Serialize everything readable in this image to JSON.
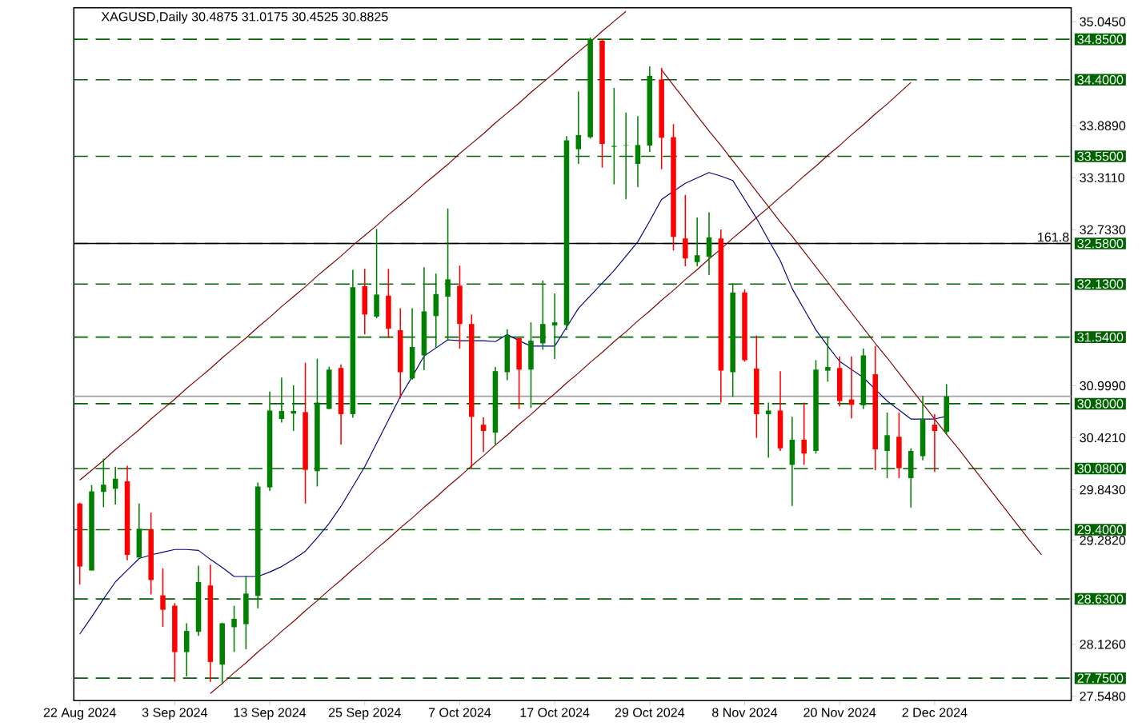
{
  "chart_data": {
    "type": "candlestick",
    "title": "XAGUSD,Daily  30.4875 31.0175 30.4525 30.8825",
    "categories": [
      "22 Aug 2024",
      null,
      null,
      null,
      null,
      null,
      null,
      null,
      "3 Sep 2024",
      null,
      null,
      null,
      null,
      null,
      null,
      null,
      "13 Sep 2024",
      null,
      null,
      null,
      null,
      null,
      null,
      null,
      "25 Sep 2024",
      null,
      null,
      null,
      null,
      null,
      null,
      null,
      "7 Oct 2024",
      null,
      null,
      null,
      null,
      null,
      null,
      null,
      "17 Oct 2024",
      null,
      null,
      null,
      null,
      null,
      null,
      null,
      "29 Oct 2024",
      null,
      null,
      null,
      null,
      null,
      null,
      null,
      "8 Nov 2024",
      null,
      null,
      null,
      null,
      null,
      null,
      null,
      "20 Nov 2024",
      null,
      null,
      null,
      null,
      null,
      null,
      null,
      "2 Dec 2024",
      null,
      null,
      null,
      null,
      null,
      null,
      null,
      null,
      null,
      null,
      null
    ],
    "ohlc": [
      [
        29.69,
        29.7,
        28.79,
        28.99
      ],
      [
        28.946,
        29.896,
        28.946,
        29.826
      ],
      [
        29.82,
        30.19,
        29.65,
        29.9
      ],
      [
        29.855,
        30.1,
        29.68,
        29.966
      ],
      [
        29.937,
        30.11,
        29.06,
        29.12
      ],
      [
        29.09,
        29.69,
        29.09,
        29.41
      ],
      [
        29.4,
        29.59,
        28.68,
        28.84
      ],
      [
        28.67,
        28.97,
        28.32,
        28.51
      ],
      [
        28.555,
        28.585,
        27.71,
        28.04
      ],
      [
        28.04,
        28.36,
        27.77,
        28.275
      ],
      [
        28.265,
        29.0,
        28.22,
        28.818
      ],
      [
        28.78,
        29.01,
        27.71,
        27.93
      ],
      [
        27.9,
        28.365,
        27.68,
        28.36
      ],
      [
        28.316,
        28.555,
        28.04,
        28.41
      ],
      [
        28.35,
        28.89,
        28.07,
        28.69
      ],
      [
        28.665,
        29.925,
        28.526,
        29.88
      ],
      [
        29.87,
        30.935,
        29.83,
        30.724
      ],
      [
        30.63,
        31.09,
        30.59,
        30.72
      ],
      [
        30.69,
        31.004,
        30.497,
        30.72
      ],
      [
        30.707,
        31.255,
        29.69,
        30.065
      ],
      [
        30.05,
        31.3,
        29.88,
        30.812
      ],
      [
        30.742,
        31.21,
        30.74,
        31.179
      ],
      [
        31.197,
        31.237,
        30.345,
        30.683
      ],
      [
        30.683,
        32.287,
        30.643,
        32.095
      ],
      [
        32.106,
        32.299,
        31.57,
        31.791
      ],
      [
        31.768,
        32.742,
        31.75,
        32.013
      ],
      [
        32.001,
        32.299,
        31.529,
        31.634
      ],
      [
        31.616,
        31.861,
        30.858,
        31.15
      ],
      [
        31.08,
        31.861,
        31.068,
        31.43
      ],
      [
        31.337,
        32.316,
        31.173,
        31.826
      ],
      [
        31.774,
        32.246,
        31.424,
        32.019
      ],
      [
        31.99,
        32.969,
        31.511,
        32.182
      ],
      [
        32.112,
        32.334,
        31.412,
        31.686
      ],
      [
        31.686,
        31.791,
        30.083,
        30.654
      ],
      [
        30.567,
        30.648,
        30.264,
        30.497
      ],
      [
        30.479,
        31.208,
        30.345,
        31.162
      ],
      [
        31.15,
        31.628,
        31.062,
        31.558
      ],
      [
        31.529,
        31.529,
        30.742,
        31.179
      ],
      [
        31.179,
        31.704,
        30.753,
        31.5
      ],
      [
        31.471,
        32.17,
        31.4,
        31.686
      ],
      [
        31.669,
        32.025,
        31.296,
        31.704
      ],
      [
        31.675,
        33.774,
        31.616,
        33.727
      ],
      [
        33.628,
        34.27,
        33.465,
        33.786
      ],
      [
        33.762,
        34.87,
        33.745,
        34.853
      ],
      [
        34.835,
        34.85,
        33.424,
        33.686
      ],
      [
        33.655,
        34.31,
        33.237,
        33.665
      ],
      [
        33.67,
        34.036,
        33.074,
        33.675
      ],
      [
        33.465,
        33.995,
        33.208,
        33.675
      ],
      [
        33.669,
        34.549,
        33.599,
        34.444
      ],
      [
        34.404,
        34.532,
        33.406,
        33.756
      ],
      [
        33.762,
        33.908,
        32.503,
        32.654
      ],
      [
        32.637,
        33.121,
        32.328,
        32.415
      ],
      [
        32.374,
        32.87,
        32.328,
        32.45
      ],
      [
        32.433,
        32.928,
        32.229,
        32.649
      ],
      [
        32.637,
        32.736,
        30.812,
        31.167
      ],
      [
        31.15,
        32.141,
        30.876,
        32.036
      ],
      [
        32.036,
        32.071,
        31.267,
        31.284
      ],
      [
        31.191,
        31.558,
        30.421,
        30.683
      ],
      [
        30.683,
        30.812,
        30.199,
        30.724
      ],
      [
        30.724,
        31.162,
        30.275,
        30.304
      ],
      [
        30.12,
        30.654,
        29.663,
        30.4
      ],
      [
        30.4,
        30.812,
        30.12,
        30.246
      ],
      [
        30.275,
        31.284,
        30.246,
        31.179
      ],
      [
        31.167,
        31.541,
        31.045,
        31.208
      ],
      [
        31.197,
        31.325,
        30.771,
        30.829
      ],
      [
        30.847,
        31.325,
        30.637,
        30.788
      ],
      [
        30.783,
        31.412,
        30.742,
        31.337
      ],
      [
        31.127,
        31.441,
        30.06,
        30.293
      ],
      [
        30.275,
        30.701,
        29.972,
        30.45
      ],
      [
        30.433,
        30.701,
        29.972,
        30.083
      ],
      [
        29.972,
        30.304,
        29.646,
        30.275
      ],
      [
        30.217,
        30.887,
        30.17,
        30.625
      ],
      [
        30.567,
        30.683,
        30.042,
        30.497
      ],
      [
        30.4875,
        31.0175,
        30.4525,
        30.8825
      ],
      null,
      null,
      null,
      null,
      null,
      null,
      null,
      null,
      null,
      null
    ],
    "colors": [
      "#ff0000",
      "#008000",
      "#008000",
      "#008000",
      "#ff0000",
      "#008000",
      "#ff0000",
      "#ff0000",
      "#ff0000",
      "#008000",
      "#008000",
      "#ff0000",
      "#008000",
      "#008000",
      "#008000",
      "#008000",
      "#008000",
      "#008000",
      "#008000",
      "#ff0000",
      "#008000",
      "#008000",
      "#ff0000",
      "#008000",
      "#ff0000",
      "#008000",
      "#ff0000",
      "#ff0000",
      "#008000",
      "#008000",
      "#008000",
      "#008000",
      "#ff0000",
      "#ff0000",
      "#ff0000",
      "#008000",
      "#008000",
      "#ff0000",
      "#008000",
      "#008000",
      "#008000",
      "#008000",
      "#008000",
      "#008000",
      "#ff0000",
      "#008000",
      "#008000",
      "#008000",
      "#008000",
      "#ff0000",
      "#ff0000",
      "#ff0000",
      "#008000",
      "#008000",
      "#ff0000",
      "#008000",
      "#ff0000",
      "#ff0000",
      "#008000",
      "#ff0000",
      "#008000",
      "#ff0000",
      "#008000",
      "#008000",
      "#ff0000",
      "#ff0000",
      "#008000",
      "#ff0000",
      "#008000",
      "#ff0000",
      "#008000",
      "#008000",
      "#ff0000",
      "#008000",
      null,
      null,
      null,
      null,
      null,
      null,
      null,
      null,
      null,
      null
    ],
    "series": [
      {
        "type": "line",
        "color": "#000080",
        "values": [
          28.24,
          28.43,
          28.63,
          28.82,
          28.95,
          29.08,
          29.12,
          29.15,
          29.18,
          29.18,
          29.17,
          29.07,
          28.98,
          28.88,
          28.88,
          28.88,
          28.93,
          28.99,
          29.07,
          29.16,
          29.31,
          29.47,
          29.66,
          29.88,
          30.1,
          30.36,
          30.62,
          30.88,
          31.1,
          31.33,
          31.42,
          31.51,
          31.5,
          31.5,
          31.5,
          31.49,
          31.57,
          31.5,
          31.44,
          31.44,
          31.44,
          31.65,
          31.86,
          32.0,
          32.14,
          32.28,
          32.44,
          32.6,
          32.83,
          33.07,
          33.16,
          33.25,
          33.31,
          33.37,
          33.33,
          33.28,
          33.07,
          32.86,
          32.62,
          32.39,
          32.08,
          31.85,
          31.62,
          31.44,
          31.27,
          31.18,
          31.09,
          30.96,
          30.83,
          30.73,
          30.63,
          30.63,
          30.63,
          30.66,
          null,
          null,
          null,
          null,
          null,
          null,
          null,
          null,
          null,
          null
        ]
      },
      {
        "type": "line",
        "color": "#800000",
        "values": [
          29.95,
          30.06,
          30.17,
          30.29,
          30.4,
          30.51,
          30.63,
          30.74,
          30.85,
          30.97,
          31.08,
          31.19,
          31.31,
          31.42,
          31.53,
          31.65,
          31.76,
          31.88,
          31.99,
          32.1,
          32.22,
          32.33,
          32.44,
          32.56,
          32.67,
          32.78,
          32.9,
          33.01,
          33.12,
          33.24,
          33.35,
          33.46,
          33.58,
          33.69,
          33.8,
          33.92,
          34.03,
          34.14,
          34.26,
          34.37,
          34.48,
          34.6,
          34.71,
          34.82,
          34.94,
          35.05,
          35.16,
          null,
          null,
          null,
          null,
          null,
          null,
          null,
          null,
          null,
          null,
          null,
          null,
          null,
          null,
          null,
          null,
          null,
          null,
          null,
          null,
          null,
          null,
          null,
          null,
          null,
          null,
          null,
          null,
          null,
          null,
          null,
          null,
          null,
          null,
          null,
          null,
          null
        ]
      },
      {
        "type": "line",
        "color": "#800000",
        "values": [
          null,
          null,
          null,
          null,
          null,
          null,
          null,
          null,
          null,
          null,
          null,
          27.58,
          27.69,
          27.81,
          27.92,
          28.04,
          28.15,
          28.27,
          28.38,
          28.5,
          28.61,
          28.73,
          28.84,
          28.96,
          29.07,
          29.19,
          29.3,
          29.42,
          29.53,
          29.65,
          29.76,
          29.88,
          29.99,
          30.11,
          30.22,
          30.34,
          30.45,
          30.57,
          30.68,
          30.8,
          30.91,
          31.03,
          31.14,
          31.26,
          31.37,
          31.49,
          31.6,
          31.72,
          31.83,
          31.95,
          32.06,
          32.18,
          32.29,
          32.41,
          32.52,
          32.64,
          32.75,
          32.87,
          32.98,
          33.1,
          33.21,
          33.33,
          33.44,
          33.56,
          33.67,
          33.79,
          33.9,
          34.02,
          34.13,
          34.25,
          34.37,
          null,
          null,
          null,
          null,
          null,
          null,
          null,
          null,
          null,
          null,
          null,
          null,
          null
        ]
      },
      {
        "type": "line",
        "color": "#800000",
        "values": [
          null,
          null,
          null,
          null,
          null,
          null,
          null,
          null,
          null,
          null,
          null,
          null,
          null,
          null,
          null,
          null,
          null,
          null,
          null,
          null,
          null,
          null,
          null,
          null,
          null,
          null,
          null,
          null,
          null,
          null,
          null,
          null,
          null,
          null,
          null,
          null,
          null,
          null,
          null,
          null,
          null,
          null,
          null,
          null,
          null,
          null,
          null,
          null,
          null,
          34.51,
          34.34,
          34.17,
          34.0,
          33.83,
          33.67,
          33.5,
          33.33,
          33.16,
          32.99,
          32.82,
          32.66,
          32.49,
          32.32,
          32.15,
          31.98,
          31.81,
          31.64,
          31.47,
          31.31,
          31.14,
          30.97,
          30.8,
          30.63,
          30.46,
          30.3,
          30.13,
          29.96,
          29.79,
          29.62,
          29.45,
          29.28,
          29.12,
          null,
          null
        ]
      }
    ],
    "ref_lines": [
      {
        "axis": "y",
        "value": 34.85,
        "label": "34.8500",
        "color": "#006400",
        "line_style": "dashed"
      },
      {
        "axis": "y",
        "value": 34.4,
        "label": "34.4000",
        "color": "#006400",
        "line_style": "dashed"
      },
      {
        "axis": "y",
        "value": 33.55,
        "label": "33.5500",
        "color": "#006400",
        "line_style": "dashed"
      },
      {
        "axis": "y",
        "value": 32.58,
        "label": "32.5800",
        "color": "#006400",
        "line_style": "dashed"
      },
      {
        "axis": "y",
        "value": 32.58,
        "color": "#000000",
        "line_style": "solid"
      },
      {
        "axis": "y",
        "value": 32.13,
        "label": "32.1300",
        "color": "#006400",
        "line_style": "dashed"
      },
      {
        "axis": "y",
        "value": 31.54,
        "label": "31.5400",
        "color": "#006400",
        "line_style": "dashed"
      },
      {
        "axis": "y",
        "value": 30.8825,
        "color": "#a0a0a0",
        "line_style": "solid"
      },
      {
        "axis": "y",
        "value": 30.8,
        "label": "30.8000",
        "color": "#006400",
        "line_style": "dashed"
      },
      {
        "axis": "y",
        "value": 30.08,
        "label": "30.0800",
        "color": "#006400",
        "line_style": "dashed"
      },
      {
        "axis": "y",
        "value": 29.4,
        "label": "29.4000",
        "color": "#006400",
        "line_style": "dashed"
      },
      {
        "axis": "y",
        "value": 28.63,
        "label": "28.6300",
        "color": "#006400",
        "line_style": "dashed"
      },
      {
        "axis": "y",
        "value": 27.75,
        "label": "27.7500",
        "color": "#006400",
        "line_style": "dashed"
      }
    ],
    "annotations": [
      {
        "text": "161.8",
        "y": 32.58
      }
    ],
    "ylim": [
      27.5,
      35.2
    ],
    "yticks": [
      {
        "value": 35.045,
        "label": "35.0450"
      },
      {
        "value": 33.889,
        "label": "33.8890"
      },
      {
        "value": 33.311,
        "label": "33.3110"
      },
      {
        "value": 32.733,
        "label": "32.7330"
      },
      {
        "value": 30.999,
        "label": "30.9990"
      },
      {
        "value": 30.421,
        "label": "30.4210"
      },
      {
        "value": 29.843,
        "label": "29.8430"
      },
      {
        "value": 29.282,
        "label": "29.2820"
      },
      {
        "value": 28.126,
        "label": "28.1260"
      },
      {
        "value": 27.548,
        "label": "27.5480"
      }
    ]
  }
}
